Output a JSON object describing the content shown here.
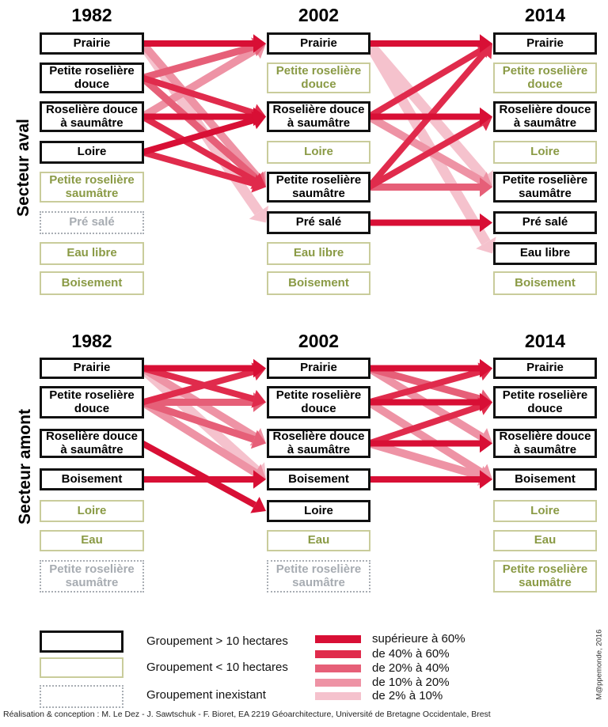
{
  "colors": {
    "sup60": "#d80f35",
    "c40_60": "#e02b4c",
    "c20_40": "#e65f78",
    "c10_20": "#ee93a5",
    "c2_10": "#f5c2cd",
    "box_major_border": "#111111",
    "box_minor_border": "#c9cc9b",
    "box_minor_text": "#8a9a45",
    "box_absent_border": "#a9aeb4",
    "box_absent_text": "#a7acb2"
  },
  "sections": [
    {
      "id": "aval",
      "label": "Secteur aval",
      "years": [
        "1982",
        "2002",
        "2014"
      ],
      "columns": [
        {
          "year": "1982",
          "boxes": [
            {
              "label": "Prairie",
              "style": "major"
            },
            {
              "label": "Petite roselière douce",
              "style": "major"
            },
            {
              "label": "Roselière douce à saumâtre",
              "style": "major"
            },
            {
              "label": "Loire",
              "style": "major"
            },
            {
              "label": "Petite roselière saumâtre",
              "style": "minor"
            },
            {
              "label": "Pré salé",
              "style": "absent"
            },
            {
              "label": "Eau libre",
              "style": "minor"
            },
            {
              "label": "Boisement",
              "style": "minor"
            }
          ]
        },
        {
          "year": "2002",
          "boxes": [
            {
              "label": "Prairie",
              "style": "major"
            },
            {
              "label": "Petite roselière douce",
              "style": "minor"
            },
            {
              "label": "Roselière douce à saumâtre",
              "style": "major"
            },
            {
              "label": "Loire",
              "style": "minor"
            },
            {
              "label": "Petite roselière saumâtre",
              "style": "major"
            },
            {
              "label": "Pré salé",
              "style": "major"
            },
            {
              "label": "Eau libre",
              "style": "minor"
            },
            {
              "label": "Boisement",
              "style": "minor"
            }
          ]
        },
        {
          "year": "2014",
          "boxes": [
            {
              "label": "Prairie",
              "style": "major"
            },
            {
              "label": "Petite roselière douce",
              "style": "minor"
            },
            {
              "label": "Roselière douce à saumâtre",
              "style": "major"
            },
            {
              "label": "Loire",
              "style": "minor"
            },
            {
              "label": "Petite roselière saumâtre",
              "style": "major"
            },
            {
              "label": "Pré salé",
              "style": "major"
            },
            {
              "label": "Eau libre",
              "style": "major"
            },
            {
              "label": "Boisement",
              "style": "minor"
            }
          ]
        }
      ],
      "flows": [
        {
          "seg": 0,
          "from": 0,
          "to": 0,
          "rate": "sup60"
        },
        {
          "seg": 0,
          "from": 0,
          "to": 4,
          "rate": "c10_20"
        },
        {
          "seg": 0,
          "from": 0,
          "to": 5,
          "rate": "c2_10"
        },
        {
          "seg": 0,
          "from": 1,
          "to": 0,
          "rate": "c20_40"
        },
        {
          "seg": 0,
          "from": 1,
          "to": 2,
          "rate": "c40_60"
        },
        {
          "seg": 0,
          "from": 1,
          "to": 4,
          "rate": "c20_40"
        },
        {
          "seg": 0,
          "from": 2,
          "to": 0,
          "rate": "c10_20"
        },
        {
          "seg": 0,
          "from": 2,
          "to": 2,
          "rate": "sup60"
        },
        {
          "seg": 0,
          "from": 2,
          "to": 4,
          "rate": "c40_60"
        },
        {
          "seg": 0,
          "from": 3,
          "to": 2,
          "rate": "sup60"
        },
        {
          "seg": 0,
          "from": 3,
          "to": 4,
          "rate": "c40_60"
        },
        {
          "seg": 1,
          "from": 0,
          "to": 0,
          "rate": "sup60"
        },
        {
          "seg": 1,
          "from": 0,
          "to": 4,
          "rate": "c2_10"
        },
        {
          "seg": 1,
          "from": 0,
          "to": 6,
          "rate": "c2_10"
        },
        {
          "seg": 1,
          "from": 2,
          "to": 0,
          "rate": "c40_60"
        },
        {
          "seg": 1,
          "from": 2,
          "to": 2,
          "rate": "sup60"
        },
        {
          "seg": 1,
          "from": 2,
          "to": 4,
          "rate": "c10_20"
        },
        {
          "seg": 1,
          "from": 4,
          "to": 0,
          "rate": "c40_60"
        },
        {
          "seg": 1,
          "from": 4,
          "to": 2,
          "rate": "c40_60"
        },
        {
          "seg": 1,
          "from": 4,
          "to": 4,
          "rate": "c20_40"
        },
        {
          "seg": 1,
          "from": 5,
          "to": 5,
          "rate": "sup60"
        }
      ]
    },
    {
      "id": "amont",
      "label": "Secteur amont",
      "years": [
        "1982",
        "2002",
        "2014"
      ],
      "columns": [
        {
          "year": "1982",
          "boxes": [
            {
              "label": "Prairie",
              "style": "major"
            },
            {
              "label": "Petite roselière douce",
              "style": "major"
            },
            {
              "label": "Roselière douce à saumâtre",
              "style": "major"
            },
            {
              "label": "Boisement",
              "style": "major"
            },
            {
              "label": "Loire",
              "style": "minor"
            },
            {
              "label": "Eau",
              "style": "minor"
            },
            {
              "label": "Petite roselière saumâtre",
              "style": "absent"
            }
          ]
        },
        {
          "year": "2002",
          "boxes": [
            {
              "label": "Prairie",
              "style": "major"
            },
            {
              "label": "Petite roselière douce",
              "style": "major"
            },
            {
              "label": "Roselière douce à saumâtre",
              "style": "major"
            },
            {
              "label": "Boisement",
              "style": "major"
            },
            {
              "label": "Loire",
              "style": "major"
            },
            {
              "label": "Eau",
              "style": "minor"
            },
            {
              "label": "Petite roselière saumâtre",
              "style": "absent"
            }
          ]
        },
        {
          "year": "2014",
          "boxes": [
            {
              "label": "Prairie",
              "style": "major"
            },
            {
              "label": "Petite roselière douce",
              "style": "major"
            },
            {
              "label": "Roselière douce à saumâtre",
              "style": "major"
            },
            {
              "label": "Boisement",
              "style": "major"
            },
            {
              "label": "Loire",
              "style": "minor"
            },
            {
              "label": "Eau",
              "style": "minor"
            },
            {
              "label": "Petite roselière saumâtre",
              "style": "minor"
            }
          ]
        }
      ],
      "flows": [
        {
          "seg": 0,
          "from": 0,
          "to": 0,
          "rate": "sup60"
        },
        {
          "seg": 0,
          "from": 0,
          "to": 1,
          "rate": "c40_60"
        },
        {
          "seg": 0,
          "from": 0,
          "to": 2,
          "rate": "c10_20"
        },
        {
          "seg": 0,
          "from": 0,
          "to": 3,
          "rate": "c2_10"
        },
        {
          "seg": 0,
          "from": 1,
          "to": 0,
          "rate": "c40_60"
        },
        {
          "seg": 0,
          "from": 1,
          "to": 1,
          "rate": "c20_40"
        },
        {
          "seg": 0,
          "from": 1,
          "to": 2,
          "rate": "c20_40"
        },
        {
          "seg": 0,
          "from": 1,
          "to": 3,
          "rate": "c10_20"
        },
        {
          "seg": 0,
          "from": 2,
          "to": 4,
          "rate": "sup60"
        },
        {
          "seg": 0,
          "from": 3,
          "to": 3,
          "rate": "sup60"
        },
        {
          "seg": 1,
          "from": 0,
          "to": 0,
          "rate": "sup60"
        },
        {
          "seg": 1,
          "from": 0,
          "to": 1,
          "rate": "c20_40"
        },
        {
          "seg": 1,
          "from": 0,
          "to": 2,
          "rate": "c10_20"
        },
        {
          "seg": 1,
          "from": 1,
          "to": 0,
          "rate": "c40_60"
        },
        {
          "seg": 1,
          "from": 1,
          "to": 1,
          "rate": "sup60"
        },
        {
          "seg": 1,
          "from": 1,
          "to": 3,
          "rate": "c10_20"
        },
        {
          "seg": 1,
          "from": 2,
          "to": 1,
          "rate": "c40_60"
        },
        {
          "seg": 1,
          "from": 2,
          "to": 2,
          "rate": "sup60"
        },
        {
          "seg": 1,
          "from": 2,
          "to": 3,
          "rate": "c10_20"
        },
        {
          "seg": 1,
          "from": 3,
          "to": 3,
          "rate": "sup60"
        }
      ]
    }
  ],
  "legend": {
    "boxes": [
      {
        "style": "major",
        "label": "Groupement > 10 hectares"
      },
      {
        "style": "minor",
        "label": "Groupement < 10 hectares"
      },
      {
        "style": "absent",
        "label": "Groupement inexistant"
      }
    ],
    "flows": [
      {
        "key": "sup60",
        "label": "supérieure à 60%"
      },
      {
        "key": "c40_60",
        "label": "de 40% à 60%"
      },
      {
        "key": "c20_40",
        "label": "de 20% à 40%"
      },
      {
        "key": "c10_20",
        "label": "de 10% à 20%"
      },
      {
        "key": "c2_10",
        "label": "de 2% à 10%"
      }
    ]
  },
  "footer": {
    "credit": "Réalisation & conception : M. Le Dez - J. Sawtschuk - F. Bioret, EA 2219 Géoarchitecture, Université de Bretagne Occidentale, Brest",
    "attribution": "M@ppemonde, 2016"
  }
}
